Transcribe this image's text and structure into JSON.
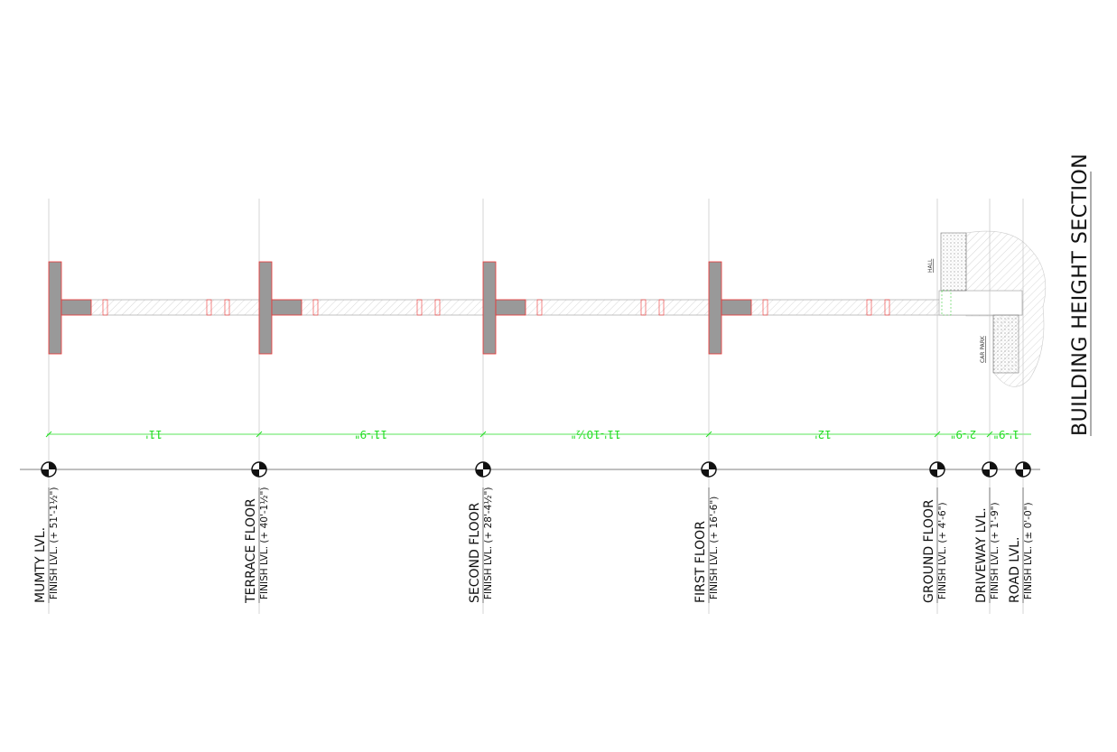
{
  "title": "BUILDING HEIGHT SECTION",
  "levels": [
    {
      "name": "MUMTY LVL.",
      "finish": "FINISH LVL. (+ 51'-1½\")"
    },
    {
      "name": "TERRACE FLOOR",
      "finish": "FINISH LVL. (+ 40'-1½\")"
    },
    {
      "name": "SECOND FLOOR",
      "finish": "FINISH LVL. (+ 28'-4½\")"
    },
    {
      "name": "FIRST FLOOR",
      "finish": "FINISH LVL. (+ 16'-6\")"
    },
    {
      "name": "GROUND FLOOR",
      "finish": "FINISH LVL. (+ 4'-6\")"
    },
    {
      "name": "DRIVEWAY LVL.",
      "finish": "FINISH LVL. (+ 1'-9\")"
    },
    {
      "name": "ROAD LVL.",
      "finish": "FINISH LVL. (± 0'-0\")"
    }
  ],
  "dimensions": [
    "11'",
    "11'-9\"",
    "11'-10½\"",
    "12'",
    "2'-9\"",
    "1'-9\""
  ],
  "spaces": {
    "hall": "HALL",
    "car_park": "CAR PARK"
  }
}
